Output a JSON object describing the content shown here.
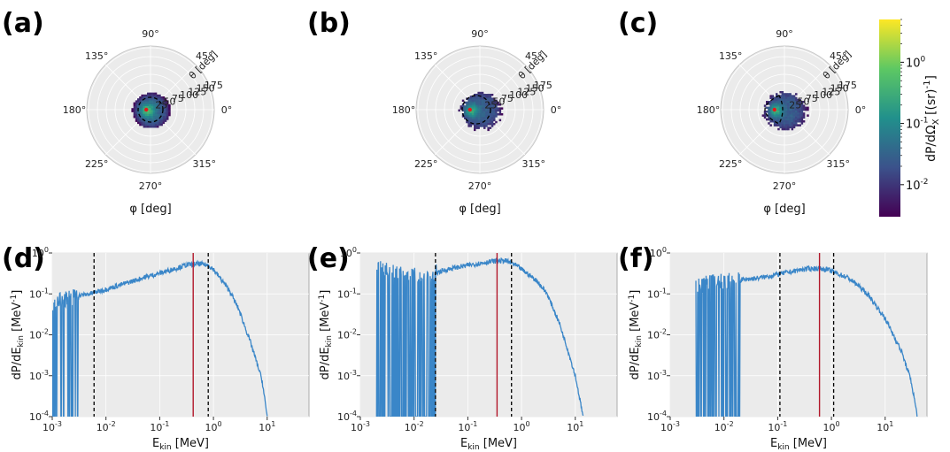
{
  "colormap": [
    "#440154",
    "#3b528b",
    "#21908c",
    "#5dc863",
    "#fde725"
  ],
  "accent": {
    "line": "#3a86c8",
    "red": "#b2182b",
    "dash": "#000000",
    "panel_bg": "#ebebeb"
  },
  "polar_axes": {
    "angle_ticks": [
      "90°",
      "45°",
      "0°",
      "315°",
      "270°",
      "225°",
      "180°",
      "135°"
    ],
    "radial_ticks": [
      "25",
      "50",
      "75",
      "100",
      "125",
      "150",
      "175"
    ],
    "theta_label": "θ [deg]",
    "phi_label": "φ [deg]"
  },
  "colorbar": {
    "label": "dP/dΩ",
    "label_sub": "X",
    "label_unit": " [(sr)",
    "label_unit_sup": "-1",
    "label_close": "]",
    "ticks": [
      {
        "base": "10",
        "exp": "0",
        "value": 1
      },
      {
        "base": "10",
        "exp": "-1",
        "value": 0.1
      },
      {
        "base": "10",
        "exp": "-2",
        "value": 0.01
      }
    ],
    "range": [
      0.003,
      5
    ]
  },
  "spectrum_axes": {
    "xlabel": "E",
    "xlabel_sub": "kin",
    "xlabel_unit": " [MeV]",
    "ylabel": "dP/dE",
    "ylabel_sub": "kin",
    "ylabel_unit": " [MeV",
    "ylabel_unit_sup": "-1",
    "ylabel_close": "]",
    "x_ticks": [
      {
        "base": "10",
        "exp": "-3"
      },
      {
        "base": "10",
        "exp": "-2"
      },
      {
        "base": "10",
        "exp": "-1"
      },
      {
        "base": "10",
        "exp": "0"
      },
      {
        "base": "10",
        "exp": "1"
      }
    ],
    "y_ticks": [
      {
        "base": "10",
        "exp": "0"
      },
      {
        "base": "10",
        "exp": "-1"
      },
      {
        "base": "10",
        "exp": "-2"
      },
      {
        "base": "10",
        "exp": "-3"
      },
      {
        "base": "10",
        "exp": "-4"
      }
    ]
  },
  "chart_data": [
    {
      "type": "heatmap",
      "panel": "(a)",
      "projection": "polar",
      "distribution": {
        "theta_max_deg": 55,
        "peak_phi_deg": 180,
        "peak_theta_deg": 12,
        "edge": "sharp",
        "level": 0.35
      },
      "dashed_circle_theta_deg": 35,
      "red_marker": {
        "phi_deg": 180,
        "theta_deg": 12
      }
    },
    {
      "type": "heatmap",
      "panel": "(b)",
      "projection": "polar",
      "distribution": {
        "theta_max_deg": 68,
        "peak_phi_deg": 180,
        "peak_theta_deg": 28,
        "edge": "ragged",
        "level": 0.3
      },
      "dashed_circle_theta_deg": 25,
      "red_marker": {
        "phi_deg": 180,
        "theta_deg": 28
      }
    },
    {
      "type": "heatmap",
      "panel": "(c)",
      "projection": "polar",
      "distribution": {
        "theta_max_deg": 70,
        "peak_phi_deg": 180,
        "peak_theta_deg": 28,
        "edge": "ragged",
        "level": 0.3
      },
      "dashed_shape": "lens",
      "red_marker": {
        "phi_deg": 180,
        "theta_deg": 28
      }
    },
    {
      "type": "line",
      "panel": "(d)",
      "xscale": "log",
      "yscale": "log",
      "xlim": [
        0.001,
        60
      ],
      "ylim": [
        0.0001,
        1
      ],
      "x": [
        0.001,
        0.002,
        0.003,
        0.005,
        0.01,
        0.02,
        0.05,
        0.1,
        0.2,
        0.3,
        0.5,
        0.8,
        1,
        2,
        3,
        5,
        8,
        10
      ],
      "y": [
        0.06,
        0.08,
        0.09,
        0.1,
        0.13,
        0.17,
        0.25,
        0.32,
        0.42,
        0.5,
        0.55,
        0.5,
        0.4,
        0.12,
        0.04,
        0.006,
        0.0008,
        0.0001
      ],
      "noise": {
        "x_below": 0.003,
        "amplitude": 0.5
      },
      "vlines_dashed": [
        0.006,
        0.8
      ],
      "vline_red": 0.42
    },
    {
      "type": "line",
      "panel": "(e)",
      "xscale": "log",
      "yscale": "log",
      "xlim": [
        0.001,
        60
      ],
      "ylim": [
        0.0001,
        1
      ],
      "x": [
        0.002,
        0.003,
        0.005,
        0.01,
        0.02,
        0.03,
        0.05,
        0.1,
        0.2,
        0.3,
        0.5,
        0.7,
        1,
        2,
        3,
        5,
        7,
        10,
        14
      ],
      "y": [
        0.4,
        0.4,
        0.35,
        0.3,
        0.3,
        0.35,
        0.42,
        0.5,
        0.58,
        0.63,
        0.65,
        0.55,
        0.4,
        0.2,
        0.1,
        0.02,
        0.005,
        0.001,
        0.0001
      ],
      "noise": {
        "x_below": 0.026,
        "amplitude": 1.0
      },
      "vlines_dashed": [
        0.025,
        0.65
      ],
      "vline_red": 0.35
    },
    {
      "type": "line",
      "panel": "(f)",
      "xscale": "log",
      "yscale": "log",
      "xlim": [
        0.001,
        60
      ],
      "ylim": [
        0.0001,
        1
      ],
      "x": [
        0.003,
        0.005,
        0.01,
        0.02,
        0.05,
        0.1,
        0.2,
        0.3,
        0.5,
        0.8,
        1,
        2,
        3,
        5,
        10,
        20,
        30,
        40
      ],
      "y": [
        0.15,
        0.2,
        0.2,
        0.22,
        0.25,
        0.3,
        0.36,
        0.4,
        0.42,
        0.4,
        0.36,
        0.25,
        0.17,
        0.09,
        0.025,
        0.004,
        0.0008,
        0.0001
      ],
      "noise": {
        "x_below": 0.02,
        "amplitude": 1.0
      },
      "vlines_dashed": [
        0.11,
        1.1
      ],
      "vline_red": 0.6
    }
  ],
  "panel_labels": [
    "(a)",
    "(b)",
    "(c)",
    "(d)",
    "(e)",
    "(f)"
  ]
}
